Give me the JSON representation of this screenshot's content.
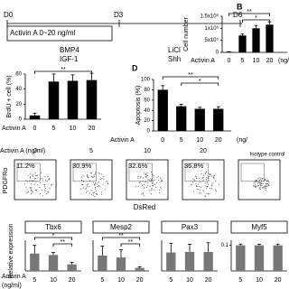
{
  "timeline": {
    "days": [
      "D0",
      "D3",
      "D6"
    ],
    "stage1": "Activin A 0~20 ng/ml",
    "stage1_factors": [
      "BMP4",
      "IGF-1"
    ],
    "stage2_factors": [
      "LiCl",
      "Shh"
    ]
  },
  "chart_data": [
    {
      "type": "bar",
      "panel_label": "B",
      "y_label": "Cell number",
      "x_label": "Activin A",
      "x_unit": "(ng/",
      "categories": [
        "0",
        "5",
        "10",
        "20"
      ],
      "values": [
        20000,
        700000,
        1000000,
        1150000
      ],
      "errors": [
        10000,
        60000,
        120000,
        120000
      ],
      "color": "#000000",
      "ylim": [
        0,
        1500000
      ],
      "yticks": [
        0,
        {
          "value": 500000,
          "label": "5x10⁵"
        },
        {
          "value": 1000000,
          "label": "1x10⁶"
        },
        {
          "value": 1500000,
          "label": "1.5x10⁶"
        }
      ],
      "significance": [
        "**",
        "*"
      ]
    },
    {
      "type": "bar",
      "y_label": "BrdU + cell (%)",
      "x_label": "Activin A",
      "categories": [
        "0",
        "5",
        "10",
        "20"
      ],
      "values": [
        5,
        50,
        51,
        52
      ],
      "errors": [
        3,
        10,
        8,
        9
      ],
      "color": "#000000",
      "ylim": [
        0,
        60
      ],
      "yticks": [
        0,
        20,
        40,
        60
      ],
      "significance": [
        "**"
      ]
    },
    {
      "type": "bar",
      "panel_label": "D",
      "y_label": "Apoptosis (%)",
      "x_label": "Activin A",
      "x_unit": "(ng/",
      "categories": [
        "0",
        "5",
        "10",
        "20"
      ],
      "values": [
        80,
        48,
        43,
        43
      ],
      "errors": [
        8,
        4,
        3,
        4
      ],
      "color": "#000000",
      "ylim": [
        0,
        100
      ],
      "yticks": [
        0,
        20,
        40,
        60,
        80,
        100
      ],
      "significance": [
        "**",
        "*"
      ]
    },
    {
      "type": "bar",
      "title": "Tbx6",
      "categories": [
        "5",
        "10",
        "20"
      ],
      "values": [
        85,
        78,
        32
      ],
      "errors": [
        40,
        12,
        10
      ],
      "color": "#777777",
      "ylim": [
        0,
        150
      ],
      "significance": [
        "*",
        "**"
      ]
    },
    {
      "type": "bar",
      "title": "Mesp2",
      "categories": [
        "5",
        "10",
        "20"
      ],
      "values": [
        40,
        35,
        8
      ],
      "errors": [
        25,
        20,
        3
      ],
      "color": "#777777",
      "ylim": [
        0,
        80
      ],
      "significance": [
        "**",
        "**"
      ]
    },
    {
      "type": "bar",
      "title": "Pax3",
      "categories": [
        "5",
        "10",
        "20"
      ],
      "values": [
        0.6,
        0.62,
        0.62
      ],
      "errors": [
        0.3,
        0.25,
        0.3
      ],
      "color": "#777777",
      "ylim": [
        0,
        1
      ]
    },
    {
      "type": "bar",
      "title": "Myf5",
      "categories": [
        "5",
        "10",
        "20"
      ],
      "values": [
        0.1,
        0.1,
        0.1
      ],
      "errors": [
        0.005,
        0.004,
        0.005
      ],
      "color": "#777777",
      "ylim": [
        0,
        0.12
      ],
      "yticks": [
        0.1
      ]
    }
  ],
  "expression_axes": {
    "y_label": "Relative expression",
    "x_label": "Activin A",
    "x_unit": "(ng/ml)"
  },
  "flow": {
    "condition_label": "Activin A (ng/ml)",
    "y_label": "PDGFRα",
    "x_label": "DsRed",
    "panels": [
      {
        "label": "0",
        "percent": "11.2%"
      },
      {
        "label": "5",
        "percent": "30.9%"
      },
      {
        "label": "10",
        "percent": "32.6%"
      },
      {
        "label": "20",
        "percent": "36.8%"
      },
      {
        "label": "Isotype control"
      }
    ]
  }
}
